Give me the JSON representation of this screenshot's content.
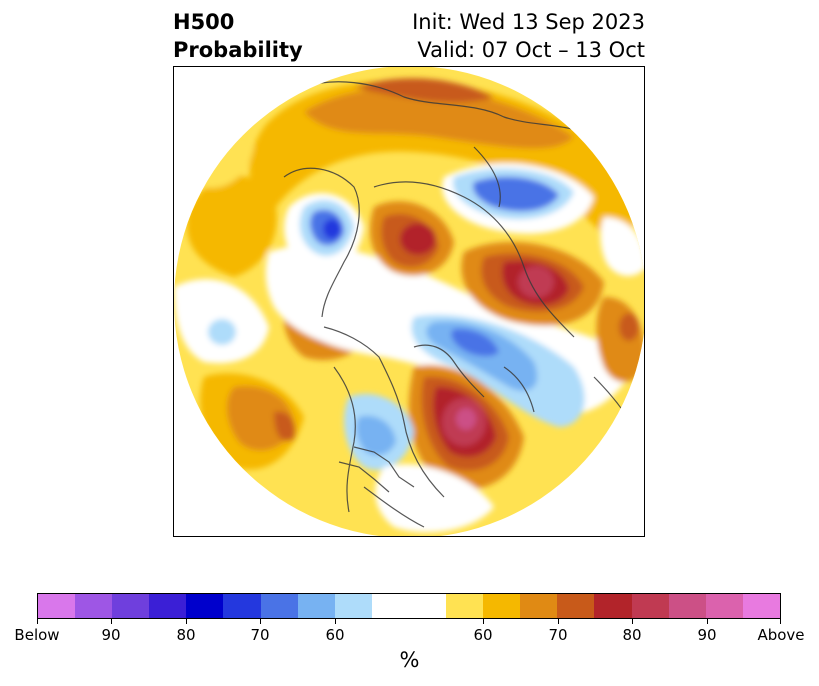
{
  "title": {
    "left_line1": "H500",
    "left_line2": "Probability",
    "right_line1": "Init: Wed 13 Sep 2023",
    "right_line2": "Valid: 07 Oct – 13 Oct"
  },
  "colorbar": {
    "colors": [
      "#d977eb",
      "#9e56e5",
      "#6f3fdd",
      "#3b1fd6",
      "#0000cc",
      "#2438de",
      "#4a73e6",
      "#77b2f2",
      "#aedcfa",
      "#ffffff",
      "#ffffff",
      "#ffe252",
      "#f5b800",
      "#e08a14",
      "#c85a1a",
      "#b2242a",
      "#c03a52",
      "#cc5086",
      "#db62ad",
      "#e87ae0"
    ],
    "tick_labels": [
      "Below",
      "90",
      "80",
      "70",
      "60",
      "60",
      "70",
      "80",
      "90",
      "Above"
    ],
    "unit": "%"
  },
  "legend_meaning": {
    "below_colors": "blue-purple",
    "above_colors": "yellow-red-pink"
  }
}
